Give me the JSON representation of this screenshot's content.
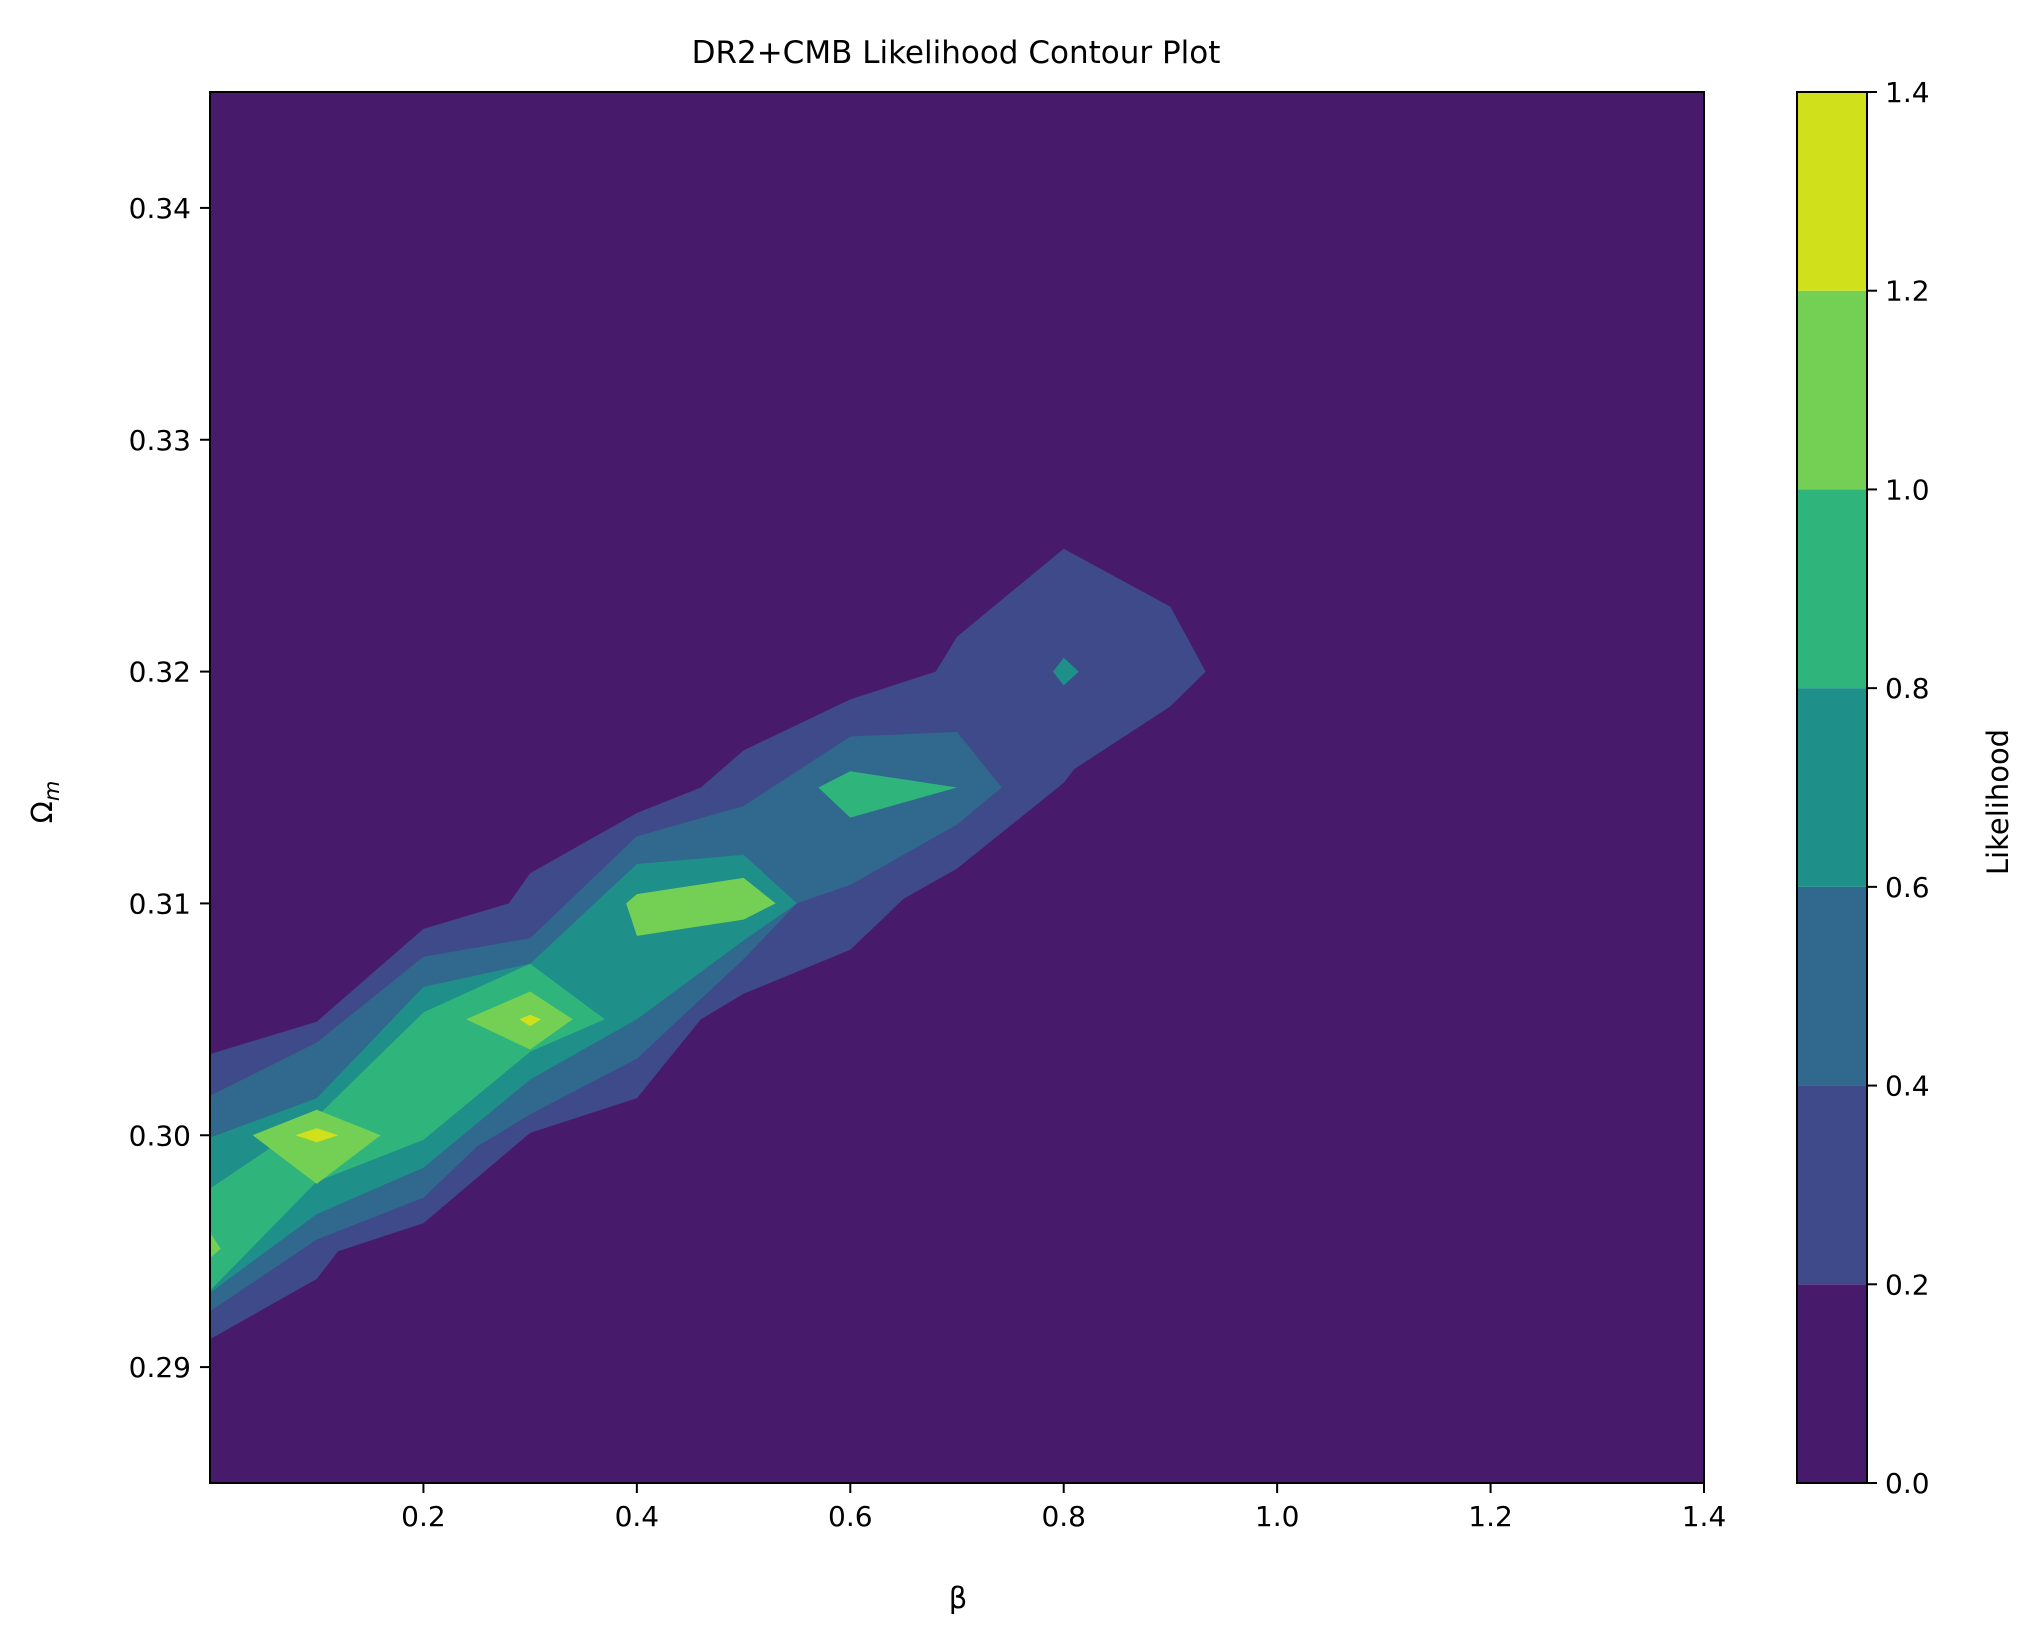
{
  "chart_data": {
    "type": "contour",
    "title": "DR2+CMB Likelihood Contour Plot",
    "xlabel": "β",
    "ylabel": "Ω",
    "ylabel_subscript": "m",
    "xlim": [
      0.0,
      1.4
    ],
    "ylim": [
      0.285,
      0.345
    ],
    "x_ticks": [
      0.2,
      0.4,
      0.6,
      0.8,
      1.0,
      1.2,
      1.4
    ],
    "x_tick_labels": [
      "0.2",
      "0.4",
      "0.6",
      "0.8",
      "1.0",
      "1.2",
      "1.4"
    ],
    "y_ticks": [
      0.29,
      0.3,
      0.31,
      0.32,
      0.33,
      0.34
    ],
    "y_tick_labels": [
      "0.29",
      "0.30",
      "0.31",
      "0.32",
      "0.33",
      "0.34"
    ],
    "colorbar": {
      "label": "Likelihood",
      "levels": [
        0.0,
        0.2,
        0.4,
        0.6,
        0.8,
        1.0,
        1.2,
        1.4
      ],
      "tick_labels": [
        "0.0",
        "0.2",
        "0.4",
        "0.6",
        "0.8",
        "1.0",
        "1.2",
        "1.4"
      ],
      "colors": [
        "#481a6c",
        "#3e4a89",
        "#30688e",
        "#1f8f89",
        "#2fb47c",
        "#74d055",
        "#d0e11c"
      ]
    },
    "peak_likelihood_centers": [
      {
        "beta": 0.0,
        "omega_m": 0.295,
        "level": 1.0
      },
      {
        "beta": 0.1,
        "omega_m": 0.3,
        "level": 1.2
      },
      {
        "beta": 0.3,
        "omega_m": 0.305,
        "level": 1.2
      },
      {
        "beta": 0.4,
        "omega_m": 0.31,
        "level": 0.8
      },
      {
        "beta": 0.6,
        "omega_m": 0.315,
        "level": 0.6
      },
      {
        "beta": 0.8,
        "omega_m": 0.32,
        "level": 0.4
      }
    ],
    "contour_regions": [
      {
        "level": 0.2,
        "polygon": [
          [
            0.0,
            0.2912
          ],
          [
            0.1,
            0.2938
          ],
          [
            0.12,
            0.295
          ],
          [
            0.2,
            0.2962
          ],
          [
            0.3,
            0.3001
          ],
          [
            0.4,
            0.3016
          ],
          [
            0.46,
            0.305
          ],
          [
            0.5,
            0.3061
          ],
          [
            0.6,
            0.308
          ],
          [
            0.65,
            0.3102
          ],
          [
            0.7,
            0.3115
          ],
          [
            0.8,
            0.3152
          ],
          [
            0.81,
            0.3158
          ],
          [
            0.9,
            0.3185
          ],
          [
            0.933,
            0.32
          ],
          [
            0.9,
            0.3228
          ],
          [
            0.8,
            0.3253
          ],
          [
            0.7,
            0.3215
          ],
          [
            0.68,
            0.32
          ],
          [
            0.6,
            0.3188
          ],
          [
            0.5,
            0.3166
          ],
          [
            0.46,
            0.315
          ],
          [
            0.4,
            0.3139
          ],
          [
            0.3,
            0.3113
          ],
          [
            0.28,
            0.31
          ],
          [
            0.2,
            0.3089
          ],
          [
            0.1,
            0.3049
          ],
          [
            0.0,
            0.3035
          ]
        ]
      },
      {
        "level": 0.4,
        "polygon": [
          [
            0.0,
            0.2924
          ],
          [
            0.1,
            0.2955
          ],
          [
            0.2,
            0.2973
          ],
          [
            0.25,
            0.2995
          ],
          [
            0.3,
            0.3009
          ],
          [
            0.4,
            0.3033
          ],
          [
            0.5,
            0.3076
          ],
          [
            0.55,
            0.31
          ],
          [
            0.6,
            0.3108
          ],
          [
            0.7,
            0.3134
          ],
          [
            0.742,
            0.315
          ],
          [
            0.7,
            0.3174
          ],
          [
            0.6,
            0.3172
          ],
          [
            0.5,
            0.3142
          ],
          [
            0.4,
            0.3129
          ],
          [
            0.3,
            0.3085
          ],
          [
            0.2,
            0.3077
          ],
          [
            0.1,
            0.304
          ],
          [
            0.0,
            0.3017
          ]
        ]
      },
      {
        "level": 0.6,
        "polygon": [
          [
            0.0,
            0.2932
          ],
          [
            0.1,
            0.2966
          ],
          [
            0.2,
            0.2986
          ],
          [
            0.3,
            0.3024
          ],
          [
            0.4,
            0.305
          ],
          [
            0.5,
            0.3084
          ],
          [
            0.55,
            0.31
          ],
          [
            0.5,
            0.3121
          ],
          [
            0.4,
            0.3117
          ],
          [
            0.3,
            0.3074
          ],
          [
            0.2,
            0.3064
          ],
          [
            0.1,
            0.3016
          ],
          [
            0.0,
            0.2999
          ]
        ]
      },
      {
        "level": 0.6,
        "polygon": [
          [
            0.79,
            0.32
          ],
          [
            0.8,
            0.3194
          ],
          [
            0.814,
            0.32
          ],
          [
            0.8,
            0.3206
          ]
        ]
      },
      {
        "level": 0.8,
        "polygon": [
          [
            0.0,
            0.2933
          ],
          [
            0.1,
            0.298
          ],
          [
            0.2,
            0.2998
          ],
          [
            0.3,
            0.3036
          ],
          [
            0.37,
            0.305
          ],
          [
            0.3,
            0.3074
          ],
          [
            0.2,
            0.3053
          ],
          [
            0.1,
            0.3008
          ],
          [
            0.0,
            0.2977
          ]
        ]
      },
      {
        "level": 0.8,
        "polygon": [
          [
            0.6,
            0.3137
          ],
          [
            0.7,
            0.315
          ],
          [
            0.6,
            0.3157
          ],
          [
            0.57,
            0.315
          ]
        ]
      },
      {
        "level": 1.0,
        "polygon": [
          [
            0.0,
            0.2947
          ],
          [
            0.01,
            0.2951
          ],
          [
            0.0,
            0.2958
          ]
        ]
      },
      {
        "level": 1.0,
        "polygon": [
          [
            0.1,
            0.2979
          ],
          [
            0.16,
            0.3
          ],
          [
            0.1,
            0.3011
          ],
          [
            0.04,
            0.3
          ]
        ]
      },
      {
        "level": 1.0,
        "polygon": [
          [
            0.3,
            0.3037
          ],
          [
            0.34,
            0.305
          ],
          [
            0.3,
            0.3062
          ],
          [
            0.24,
            0.305
          ]
        ]
      },
      {
        "level": 1.0,
        "polygon": [
          [
            0.4,
            0.3086
          ],
          [
            0.5,
            0.3093
          ],
          [
            0.53,
            0.31
          ],
          [
            0.5,
            0.3111
          ],
          [
            0.4,
            0.3104
          ],
          [
            0.39,
            0.31
          ]
        ]
      },
      {
        "level": 1.2,
        "polygon": [
          [
            0.1,
            0.2997
          ],
          [
            0.12,
            0.3
          ],
          [
            0.1,
            0.3003
          ],
          [
            0.08,
            0.3
          ]
        ]
      },
      {
        "level": 1.2,
        "polygon": [
          [
            0.3,
            0.3047
          ],
          [
            0.31,
            0.305
          ],
          [
            0.3,
            0.3052
          ],
          [
            0.29,
            0.305
          ]
        ]
      }
    ]
  }
}
